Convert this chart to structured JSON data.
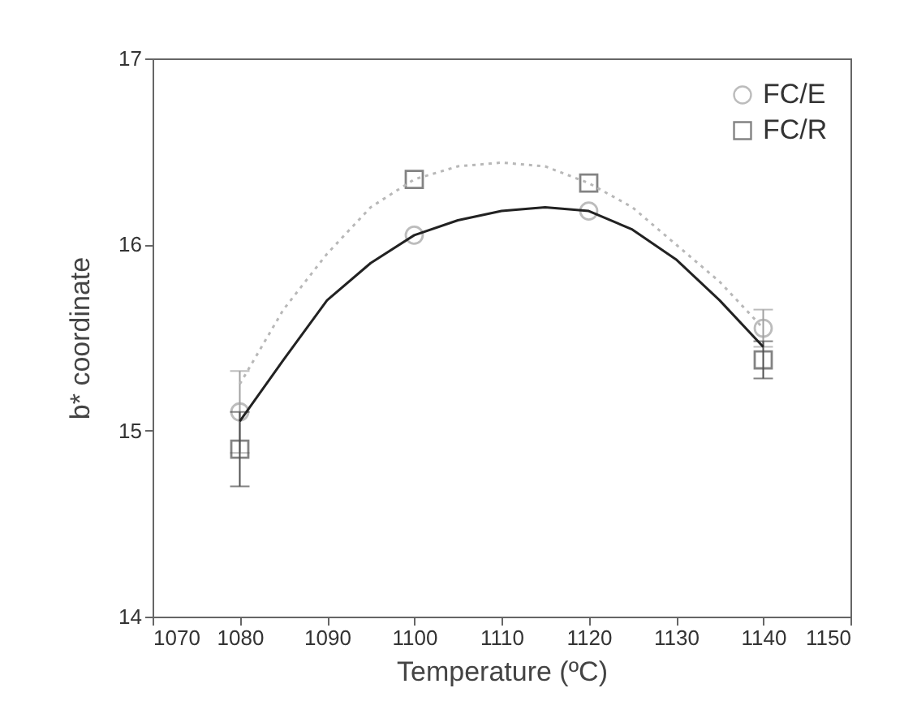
{
  "chart_data": {
    "type": "scatter",
    "xlabel": "Temperature (ºC)",
    "ylabel": "b* coordinate",
    "xlim": [
      1070,
      1150
    ],
    "xticks": [
      1070,
      1080,
      1090,
      1100,
      1110,
      1120,
      1130,
      1140,
      1150
    ],
    "ylim": [
      14,
      17
    ],
    "yticks": [
      14,
      15,
      16,
      17
    ],
    "grid": false,
    "legend": "top right",
    "series": [
      {
        "name": "FC/E",
        "color": "#a0a0a0",
        "marker": "circle",
        "x": [
          1080,
          1100,
          1120,
          1140
        ],
        "values": [
          15.1,
          16.05,
          16.18,
          15.55
        ],
        "errors": [
          0.22,
          null,
          null,
          0.1
        ]
      },
      {
        "name": "FC/R",
        "color": "#505050",
        "marker": "square",
        "x": [
          1080,
          1100,
          1120,
          1140
        ],
        "values": [
          14.9,
          16.35,
          16.33,
          15.38
        ],
        "errors": [
          0.2,
          null,
          null,
          0.1
        ]
      },
      {
        "type": "line",
        "color": "#222222",
        "line_style": "solid",
        "x": [
          1080,
          1085,
          1090,
          1095,
          1100,
          1105,
          1110,
          1115,
          1120,
          1125,
          1130,
          1135,
          1140
        ],
        "values": [
          15.05,
          15.38,
          15.7,
          15.9,
          16.05,
          16.13,
          16.18,
          16.2,
          16.18,
          16.08,
          15.92,
          15.7,
          15.45
        ]
      },
      {
        "type": "line",
        "color": "#b8b8b8",
        "line_style": "dotted",
        "x": [
          1080,
          1085,
          1090,
          1095,
          1100,
          1105,
          1110,
          1115,
          1120,
          1125,
          1130,
          1135,
          1140
        ],
        "values": [
          15.25,
          15.65,
          15.95,
          16.2,
          16.35,
          16.42,
          16.44,
          16.42,
          16.33,
          16.2,
          16.0,
          15.8,
          15.55
        ]
      }
    ]
  }
}
